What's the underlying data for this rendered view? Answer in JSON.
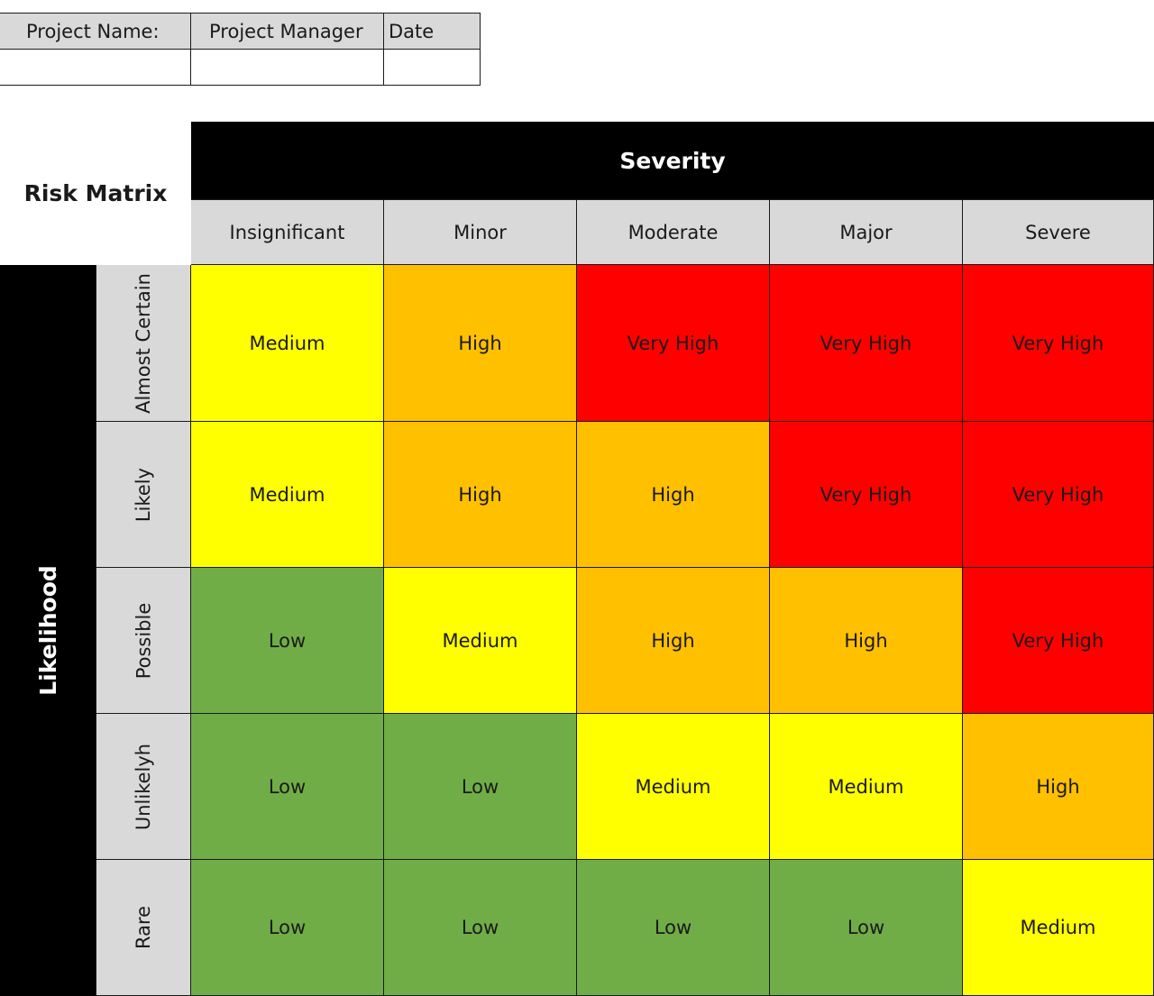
{
  "project_info": {
    "headers": [
      "Project Name:",
      "Project Manager",
      "Date"
    ],
    "values": [
      "",
      "",
      ""
    ]
  },
  "matrix": {
    "title": "Risk Matrix",
    "severity_label": "Severity",
    "likelihood_label": "Likelihood",
    "severity_levels": [
      "Insignificant",
      "Minor",
      "Moderate",
      "Major",
      "Severe"
    ],
    "likelihood_levels": [
      "Almost Certain",
      "Likely",
      "Possible",
      "Unlikelyh",
      "Rare"
    ],
    "rows": [
      [
        "Medium",
        "High",
        "Very High",
        "Very High",
        "Very High"
      ],
      [
        "Medium",
        "High",
        "High",
        "Very High",
        "Very High"
      ],
      [
        "Low",
        "Medium",
        "High",
        "High",
        "Very High"
      ],
      [
        "Low",
        "Low",
        "Medium",
        "Medium",
        "High"
      ],
      [
        "Low",
        "Low",
        "Low",
        "Low",
        "Medium"
      ]
    ]
  },
  "colors": {
    "Low": "#70ad47",
    "Medium": "#ffff00",
    "High": "#ffc000",
    "Very High": "#ff0000",
    "header_gray": "#d9d9d9",
    "bar_black": "#000000"
  }
}
